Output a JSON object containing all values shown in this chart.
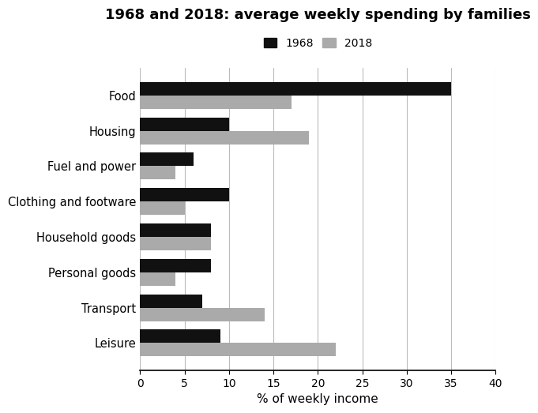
{
  "title": "1968 and 2018: average weekly spending by families",
  "categories": [
    "Food",
    "Housing",
    "Fuel and power",
    "Clothing and footware",
    "Household goods",
    "Personal goods",
    "Transport",
    "Leisure"
  ],
  "values_1968": [
    35,
    10,
    6,
    10,
    8,
    8,
    7,
    9
  ],
  "values_2018": [
    17,
    19,
    4,
    5,
    8,
    4,
    14,
    22
  ],
  "color_1968": "#111111",
  "color_2018": "#aaaaaa",
  "xlabel": "% of weekly income",
  "xlim": [
    0,
    40
  ],
  "xticks": [
    0,
    5,
    10,
    15,
    20,
    25,
    30,
    35,
    40
  ],
  "legend_labels": [
    "1968",
    "2018"
  ],
  "bar_height": 0.38,
  "background_color": "#ffffff",
  "grid_color": "#bbbbbb"
}
